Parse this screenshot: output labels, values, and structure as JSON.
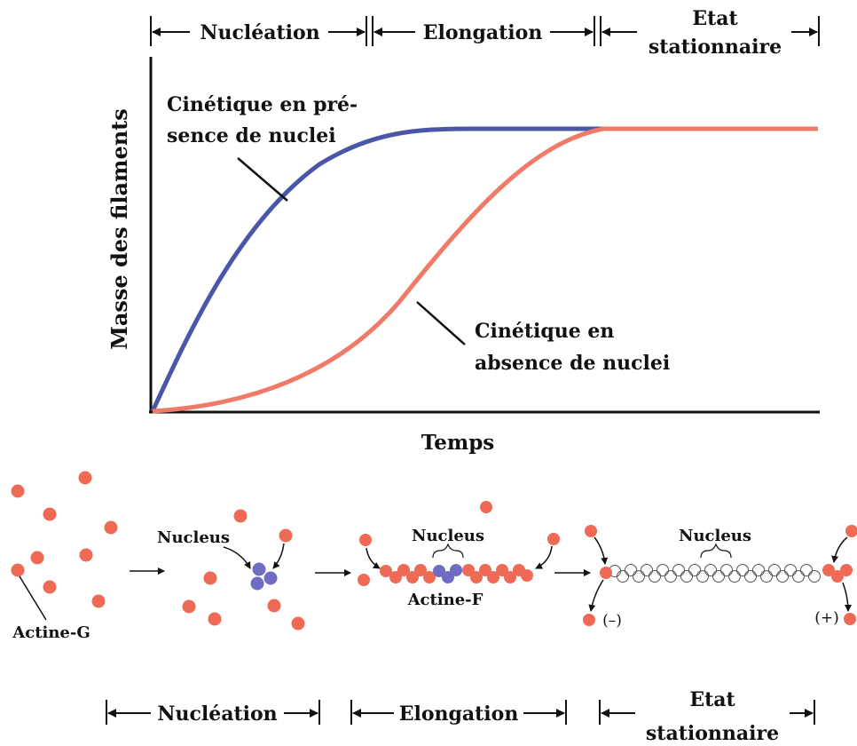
{
  "phases_top": {
    "nucleation": "Nucléation",
    "elongation": "Elongation",
    "steady_line1": "Etat",
    "steady_line2": "stationnaire"
  },
  "graph": {
    "ylabel": "Masse des filaments",
    "xlabel": "Temps",
    "label_with_line1": "Cinétique en pré-",
    "label_with_line2": "sence de nuclei",
    "label_without_line1": "Cinétique en",
    "label_without_line2": "absence de nuclei"
  },
  "mechanism": {
    "actine_g": "Actine-G",
    "nucleus_1": "Nucleus",
    "nucleus_2": "Nucleus",
    "nucleus_3": "Nucleus",
    "actine_f": "Actine-F",
    "minus_end": "(–)",
    "plus_end": "(+)"
  },
  "phases_bottom": {
    "nucleation": "Nucléation",
    "elongation": "Elongation",
    "steady_line1": "Etat",
    "steady_line2": "stationnaire"
  },
  "colors": {
    "with_nuclei": "#4a56a8",
    "without_nuclei": "#f07a68",
    "monomer": "#ee6a55",
    "nucleus": "#6f6cc4"
  }
}
